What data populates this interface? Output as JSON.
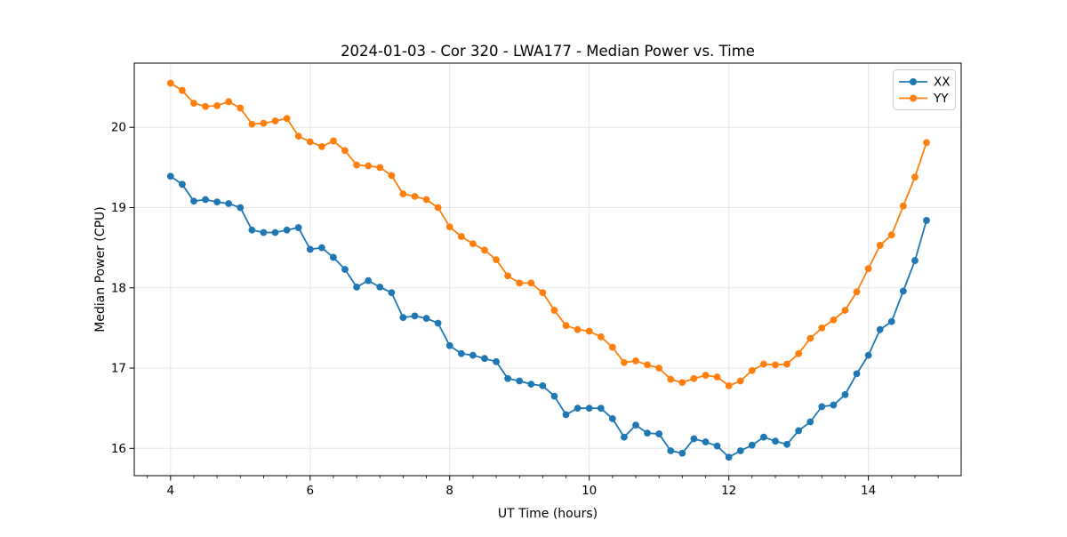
{
  "chart_data": {
    "type": "line",
    "title": "2024-01-03 - Cor 320 - LWA177 - Median Power vs. Time",
    "xlabel": "UT Time (hours)",
    "ylabel": "Median Power (CPU)",
    "xlim": [
      3.48,
      15.33
    ],
    "ylim": [
      15.66,
      20.8
    ],
    "xticks": [
      4,
      6,
      8,
      10,
      12,
      14
    ],
    "xtick_labels": [
      "4",
      "6",
      "8",
      "10",
      "12",
      "14"
    ],
    "yticks": [
      16,
      17,
      18,
      19,
      20
    ],
    "ytick_labels": [
      "16",
      "17",
      "18",
      "19",
      "20"
    ],
    "x_minor_step_hours": 0.3333,
    "grid": true,
    "legend_position": "upper right",
    "background_color": "#ffffff",
    "grid_color": "#e7e7e7",
    "spine_color": "#000000",
    "x": [
      4,
      4.167,
      4.333,
      4.5,
      4.667,
      4.833,
      5,
      5.167,
      5.333,
      5.5,
      5.667,
      5.833,
      6,
      6.167,
      6.333,
      6.5,
      6.667,
      6.833,
      7,
      7.167,
      7.333,
      7.5,
      7.667,
      7.833,
      8,
      8.167,
      8.333,
      8.5,
      8.667,
      8.833,
      9,
      9.167,
      9.333,
      9.5,
      9.667,
      9.833,
      10,
      10.167,
      10.333,
      10.5,
      10.667,
      10.833,
      11,
      11.167,
      11.333,
      11.5,
      11.667,
      11.833,
      12,
      12.167,
      12.333,
      12.5,
      12.667,
      12.833,
      13,
      13.167,
      13.333,
      13.5,
      13.667,
      13.833,
      14,
      14.167,
      14.333,
      14.5,
      14.667,
      14.833
    ],
    "series": [
      {
        "name": "XX",
        "color": "#1f77b4",
        "marker": "circle",
        "values": [
          19.39,
          19.29,
          19.08,
          19.1,
          19.07,
          19.05,
          19.0,
          18.72,
          18.69,
          18.69,
          18.72,
          18.75,
          18.48,
          18.5,
          18.38,
          18.23,
          18.01,
          18.09,
          18.01,
          17.94,
          17.63,
          17.65,
          17.62,
          17.56,
          17.28,
          17.18,
          17.16,
          17.12,
          17.08,
          16.87,
          16.84,
          16.8,
          16.78,
          16.65,
          16.42,
          16.5,
          16.5,
          16.5,
          16.37,
          16.14,
          16.29,
          16.19,
          16.18,
          15.97,
          15.94,
          16.12,
          16.08,
          16.03,
          15.89,
          15.97,
          16.04,
          16.14,
          16.09,
          16.05,
          16.22,
          16.33,
          16.52,
          16.54,
          16.67,
          16.93,
          17.16,
          17.48,
          17.58,
          17.96,
          18.34,
          18.84
        ]
      },
      {
        "name": "YY",
        "color": "#ff7f0e",
        "marker": "circle",
        "values": [
          20.55,
          20.46,
          20.3,
          20.26,
          20.27,
          20.32,
          20.24,
          20.04,
          20.05,
          20.08,
          20.11,
          19.89,
          19.82,
          19.76,
          19.83,
          19.71,
          19.53,
          19.52,
          19.5,
          19.4,
          19.17,
          19.14,
          19.1,
          19.0,
          18.76,
          18.64,
          18.55,
          18.47,
          18.35,
          18.15,
          18.06,
          18.06,
          17.94,
          17.72,
          17.53,
          17.48,
          17.46,
          17.39,
          17.26,
          17.07,
          17.09,
          17.04,
          17.0,
          16.86,
          16.82,
          16.87,
          16.91,
          16.89,
          16.78,
          16.84,
          16.97,
          17.05,
          17.04,
          17.05,
          17.18,
          17.37,
          17.5,
          17.6,
          17.72,
          17.95,
          18.24,
          18.53,
          18.66,
          19.02,
          19.38,
          19.81
        ]
      }
    ]
  },
  "legend": {
    "items": [
      {
        "label": "XX"
      },
      {
        "label": "YY"
      }
    ]
  }
}
